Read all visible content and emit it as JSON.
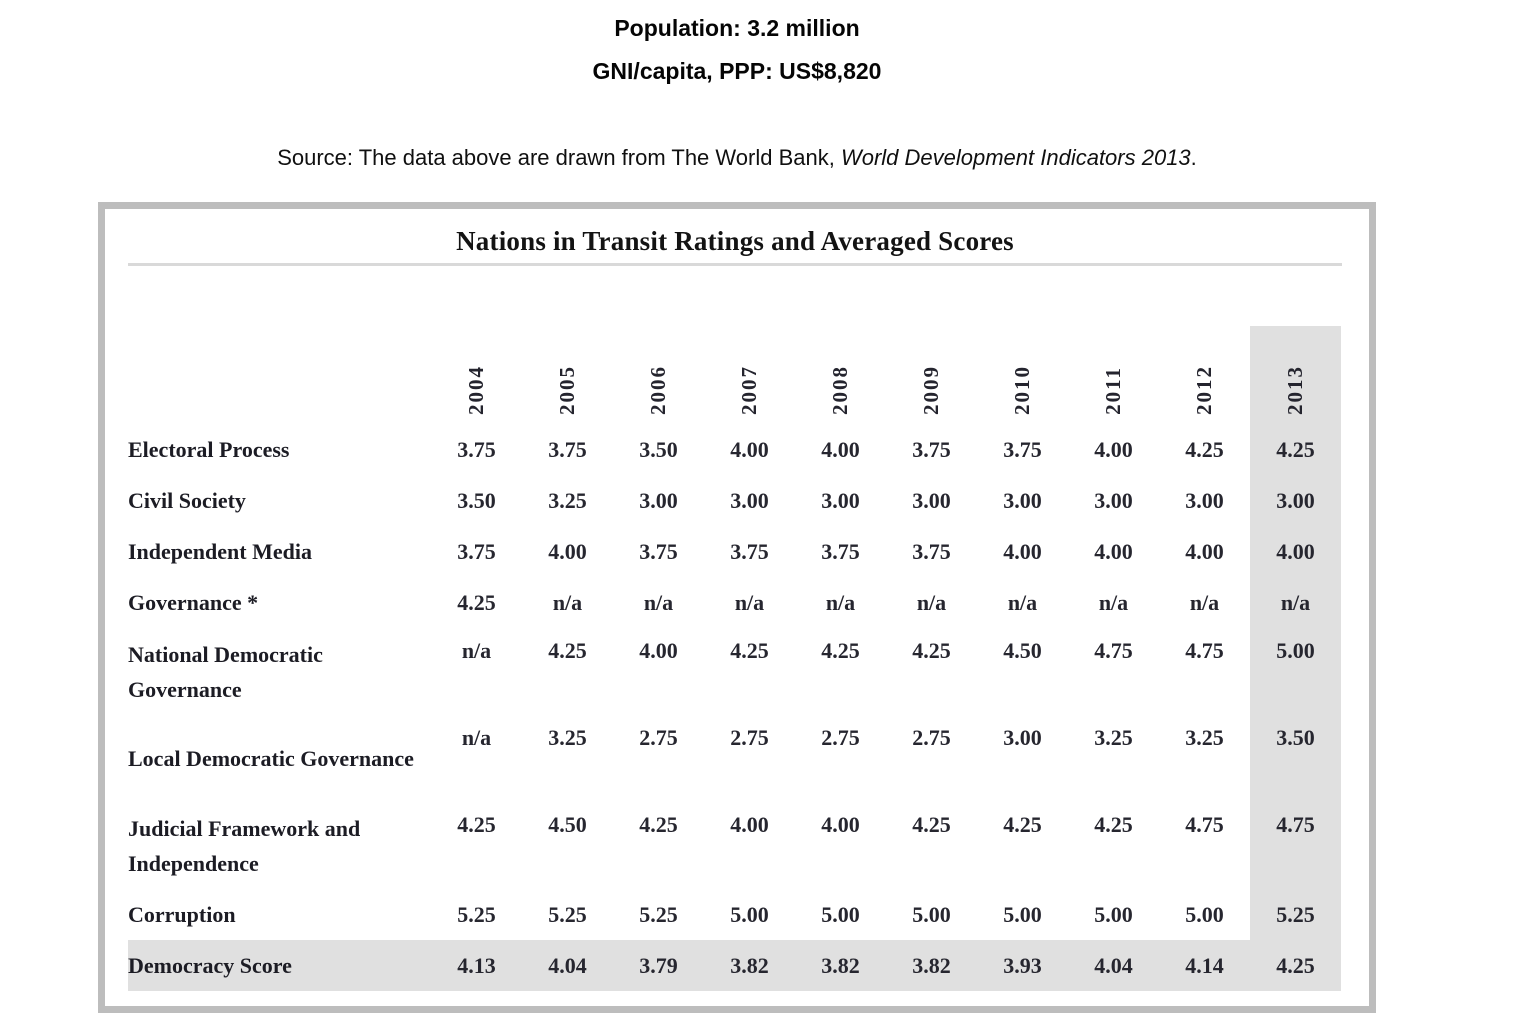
{
  "vitals": {
    "population": "Population: 3.2 million",
    "gni": "GNI/capita, PPP: US$8,820"
  },
  "source": {
    "prefix": "Source: The data above are drawn from The World Bank, ",
    "italic": "World Development Indicators 2013",
    "suffix": "."
  },
  "table": {
    "title": "Nations in Transit Ratings and Averaged Scores",
    "columns": [
      "2004",
      "2005",
      "2006",
      "2007",
      "2008",
      "2009",
      "2010",
      "2011",
      "2012",
      "2013"
    ],
    "highlighted_column": "2013",
    "rows": [
      {
        "label": "Electoral Process",
        "values": [
          "3.75",
          "3.75",
          "3.50",
          "4.00",
          "4.00",
          "3.75",
          "3.75",
          "4.00",
          "4.25",
          "4.25"
        ],
        "highlighted": false
      },
      {
        "label": "Civil Society",
        "values": [
          "3.50",
          "3.25",
          "3.00",
          "3.00",
          "3.00",
          "3.00",
          "3.00",
          "3.00",
          "3.00",
          "3.00"
        ],
        "highlighted": false
      },
      {
        "label": "Independent Media",
        "values": [
          "3.75",
          "4.00",
          "3.75",
          "3.75",
          "3.75",
          "3.75",
          "4.00",
          "4.00",
          "4.00",
          "4.00"
        ],
        "highlighted": false
      },
      {
        "label": "Governance *",
        "values": [
          "4.25",
          "n/a",
          "n/a",
          "n/a",
          "n/a",
          "n/a",
          "n/a",
          "n/a",
          "n/a",
          "n/a"
        ],
        "highlighted": false
      },
      {
        "label": "National Democratic Governance",
        "values": [
          "n/a",
          "4.25",
          "4.00",
          "4.25",
          "4.25",
          "4.25",
          "4.50",
          "4.75",
          "4.75",
          "5.00"
        ],
        "highlighted": false
      },
      {
        "label": "Local Democratic Governance",
        "values": [
          "n/a",
          "3.25",
          "2.75",
          "2.75",
          "2.75",
          "2.75",
          "3.00",
          "3.25",
          "3.25",
          "3.50"
        ],
        "highlighted": false
      },
      {
        "label": "Judicial Framework and Independence",
        "values": [
          "4.25",
          "4.50",
          "4.25",
          "4.00",
          "4.00",
          "4.25",
          "4.25",
          "4.25",
          "4.75",
          "4.75"
        ],
        "highlighted": false
      },
      {
        "label": "Corruption",
        "values": [
          "5.25",
          "5.25",
          "5.25",
          "5.00",
          "5.00",
          "5.00",
          "5.00",
          "5.00",
          "5.00",
          "5.25"
        ],
        "highlighted": false
      },
      {
        "label": "Democracy Score",
        "values": [
          "4.13",
          "4.04",
          "3.79",
          "3.82",
          "3.82",
          "3.82",
          "3.93",
          "4.04",
          "4.14",
          "4.25"
        ],
        "highlighted": true
      }
    ],
    "colors": {
      "highlight_gray": "#e0e0e0",
      "border_gray": "#bdbdbd",
      "rule_gray": "#d9d9d9"
    }
  }
}
